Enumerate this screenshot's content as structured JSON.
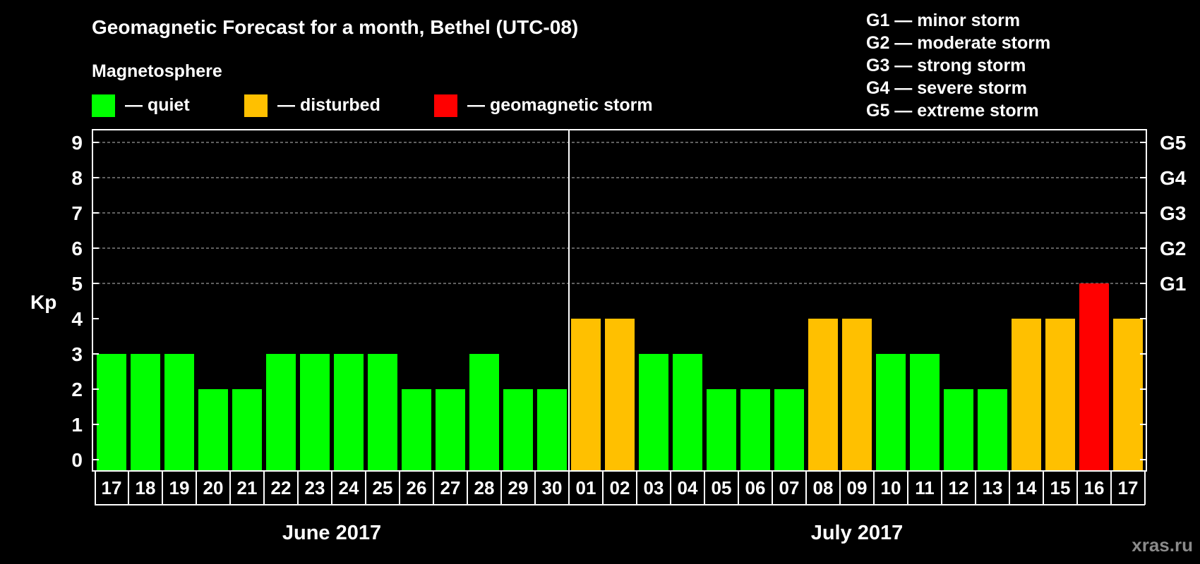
{
  "chart_data": {
    "type": "bar",
    "title": "Geomagnetic Forecast for a month, Bethel (UTC-08)",
    "ylabel": "Kp",
    "ylim": [
      0,
      9
    ],
    "y_ticks": [
      "0",
      "1",
      "2",
      "3",
      "4",
      "5",
      "6",
      "7",
      "8",
      "9"
    ],
    "right_ticks": [
      {
        "value": 5,
        "label": "G1"
      },
      {
        "value": 6,
        "label": "G2"
      },
      {
        "value": 7,
        "label": "G3"
      },
      {
        "value": 8,
        "label": "G4"
      },
      {
        "value": 9,
        "label": "G5"
      }
    ],
    "grid_levels": [
      5,
      6,
      7,
      8,
      9
    ],
    "categories": [
      "17",
      "18",
      "19",
      "20",
      "21",
      "22",
      "23",
      "24",
      "25",
      "26",
      "27",
      "28",
      "29",
      "30",
      "01",
      "02",
      "03",
      "04",
      "05",
      "06",
      "07",
      "08",
      "09",
      "10",
      "11",
      "12",
      "13",
      "14",
      "15",
      "16",
      "17"
    ],
    "values": [
      3,
      3,
      3,
      2,
      2,
      3,
      3,
      3,
      3,
      2,
      2,
      3,
      2,
      2,
      4,
      4,
      3,
      3,
      2,
      2,
      2,
      4,
      4,
      3,
      3,
      2,
      2,
      4,
      4,
      5,
      4
    ],
    "status": [
      "quiet",
      "quiet",
      "quiet",
      "quiet",
      "quiet",
      "quiet",
      "quiet",
      "quiet",
      "quiet",
      "quiet",
      "quiet",
      "quiet",
      "quiet",
      "quiet",
      "disturbed",
      "disturbed",
      "quiet",
      "quiet",
      "quiet",
      "quiet",
      "quiet",
      "disturbed",
      "disturbed",
      "quiet",
      "quiet",
      "quiet",
      "quiet",
      "disturbed",
      "disturbed",
      "storm",
      "disturbed"
    ],
    "months": [
      {
        "label": "June 2017",
        "start": 0,
        "count": 14
      },
      {
        "label": "July 2017",
        "start": 14,
        "count": 17
      }
    ],
    "legend_title": "Magnetosphere",
    "legend": [
      {
        "key": "quiet",
        "label": "— quiet",
        "color": "#00ff00"
      },
      {
        "key": "disturbed",
        "label": "— disturbed",
        "color": "#ffc000"
      },
      {
        "key": "storm",
        "label": "— geomagnetic storm",
        "color": "#ff0000"
      }
    ],
    "storm_scale": [
      "G1 — minor storm",
      "G2 — moderate storm",
      "G3 — strong storm",
      "G4 — severe storm",
      "G5 — extreme storm"
    ]
  },
  "watermark": "xras.ru"
}
